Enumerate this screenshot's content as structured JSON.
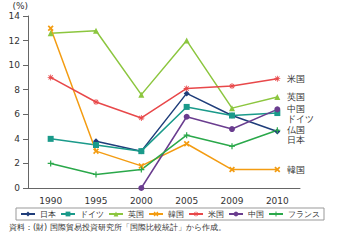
{
  "chart_data": {
    "type": "line",
    "y_label": "(%)",
    "source": "資料：(財) 国際貿易投資研究所「国際比較統計」から作成。",
    "categories": [
      "1990",
      "1995",
      "2000",
      "2005",
      "2009",
      "2010"
    ],
    "ylim": [
      0,
      14
    ],
    "yticks": [
      0,
      2,
      4,
      6,
      8,
      10,
      12,
      14
    ],
    "grid": false,
    "legend": "bottom",
    "series": [
      {
        "name": "日本",
        "color": "#1f3d7a",
        "marker": "diamond",
        "values": [
          null,
          3.8,
          3.0,
          7.7,
          5.9,
          4.6
        ]
      },
      {
        "name": "ドイツ",
        "color": "#1a9a8a",
        "marker": "square",
        "values": [
          4.0,
          3.5,
          3.0,
          6.6,
          5.9,
          6.1
        ]
      },
      {
        "name": "英国",
        "color": "#8cc63f",
        "marker": "triangle",
        "values": [
          12.6,
          12.8,
          7.6,
          12.0,
          6.5,
          7.4
        ]
      },
      {
        "name": "韓国",
        "color": "#f39c12",
        "marker": "x",
        "values": [
          13.0,
          3.0,
          1.8,
          3.6,
          1.5,
          1.5
        ]
      },
      {
        "name": "米国",
        "color": "#e8484a",
        "marker": "star",
        "values": [
          9.0,
          7.0,
          5.7,
          8.1,
          8.3,
          8.9
        ]
      },
      {
        "name": "中国",
        "color": "#6a3d8f",
        "marker": "circle",
        "values": [
          null,
          null,
          0.0,
          5.8,
          4.8,
          6.4
        ]
      },
      {
        "name": "フランス",
        "color": "#2aa84a",
        "marker": "plus",
        "values": [
          2.0,
          1.1,
          1.5,
          4.3,
          3.4,
          4.7
        ]
      }
    ],
    "annotations": [
      {
        "text": "米国",
        "series": "米国"
      },
      {
        "text": "英国",
        "series": "英国"
      },
      {
        "text": "中国",
        "series": "中国"
      },
      {
        "text": "ドイツ",
        "series": "ドイツ"
      },
      {
        "text": "仏国",
        "series": "フランス"
      },
      {
        "text": "日本",
        "series": "日本"
      },
      {
        "text": "韓国",
        "series": "韓国"
      }
    ]
  }
}
